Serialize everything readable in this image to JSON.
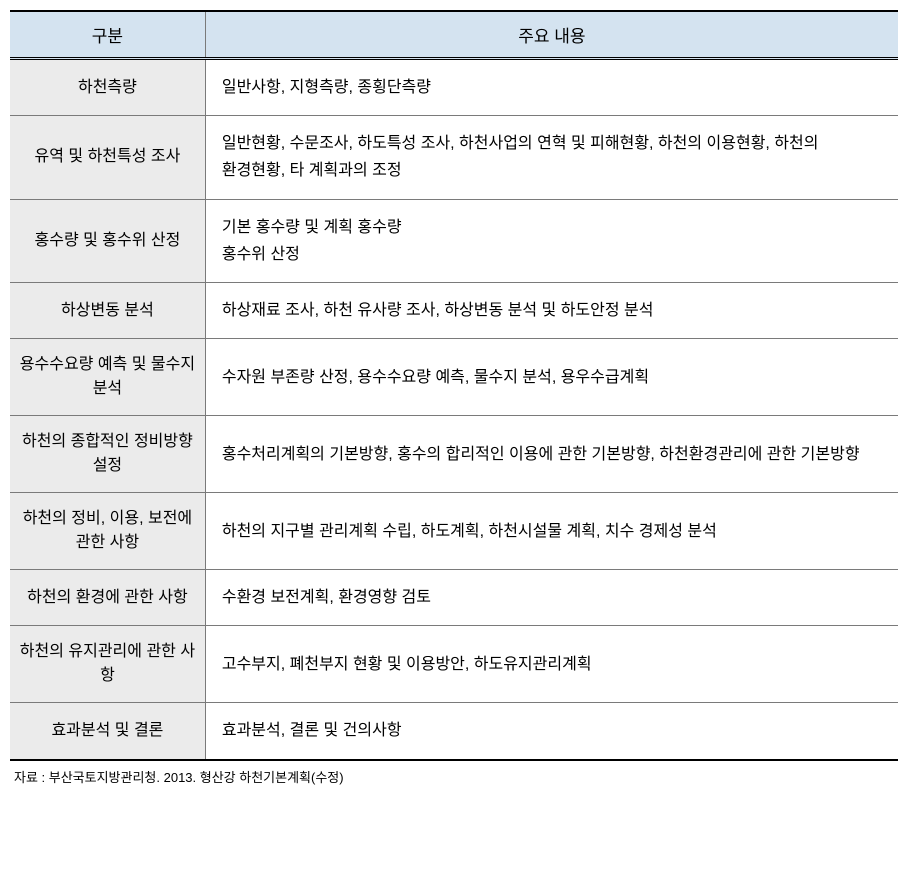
{
  "table": {
    "headers": {
      "category": "구분",
      "content": "주요 내용"
    },
    "rows": [
      {
        "category": "하천측량",
        "content": "일반사항, 지형측량, 종횡단측량"
      },
      {
        "category": "유역 및 하천특성 조사",
        "content": "일반현황, 수문조사, 하도특성 조사, 하천사업의 연혁 및 피해현황, 하천의 이용현황, 하천의 환경현황, 타 계획과의 조정"
      },
      {
        "category": "홍수량 및 홍수위 산정",
        "content": "기본 홍수량 및 계획 홍수량\n홍수위 산정"
      },
      {
        "category": "하상변동 분석",
        "content": "하상재료 조사, 하천 유사량 조사, 하상변동 분석 및 하도안정 분석"
      },
      {
        "category": "용수수요량 예측 및 물수지 분석",
        "content": "수자원 부존량 산정, 용수수요량 예측, 물수지 분석, 용우수급계획"
      },
      {
        "category": "하천의 종합적인 정비방향 설정",
        "content": "홍수처리계획의 기본방향, 홍수의 합리적인 이용에 관한 기본방향, 하천환경관리에 관한 기본방향"
      },
      {
        "category": "하천의 정비, 이용, 보전에 관한 사항",
        "content": "하천의 지구별 관리계획 수립, 하도계획, 하천시설물 계획, 치수 경제성 분석"
      },
      {
        "category": "하천의 환경에 관한 사항",
        "content": "수환경 보전계획, 환경영향 검토"
      },
      {
        "category": "하천의 유지관리에 관한 사항",
        "content": "고수부지, 폐천부지 현황 및 이용방안, 하도유지관리계획"
      },
      {
        "category": "효과분석 및 결론",
        "content": "효과분석, 결론 및 건의사항"
      }
    ]
  },
  "source_note": "자료 : 부산국토지방관리청. 2013. 형산강 하천기본계획(수정)",
  "styling": {
    "header_bg_color": "#d4e3f0",
    "category_bg_color": "#ebebeb",
    "border_color": "#7a7a7a",
    "strong_border_color": "#000000",
    "font_size_header": 17,
    "font_size_body": 16,
    "font_size_source": 13,
    "text_color": "#000000",
    "background_color": "#ffffff"
  }
}
